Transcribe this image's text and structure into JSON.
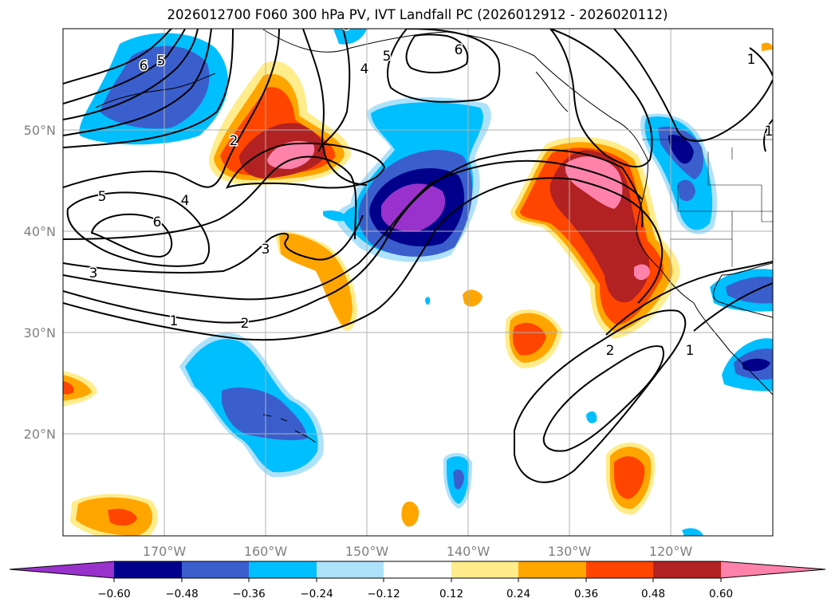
{
  "title": "2026012700 F060 300 hPa PV, IVT Landfall PC (2026012912 - 2026020112)",
  "map": {
    "lat_labels": [
      "50°N",
      "40°N",
      "30°N",
      "20°N"
    ],
    "lon_labels": [
      "170°W",
      "160°W",
      "150°W",
      "140°W",
      "130°W",
      "120°W"
    ]
  },
  "contours": {
    "labels": [
      "6",
      "5",
      "6",
      "2",
      "3",
      "4",
      "5",
      "6",
      "5",
      "4",
      "3",
      "3",
      "1",
      "2",
      "2",
      "1",
      "1",
      "1"
    ]
  },
  "colorbar": {
    "colors": [
      "#9932CC",
      "#00008B",
      "#3A5FCD",
      "#00BFFF",
      "#AEE2FA",
      "#FFFFFF",
      "#FFEC8B",
      "#FFA500",
      "#FF4500",
      "#B22222",
      "#FF82AB"
    ],
    "tick_labels": [
      "−0.60",
      "−0.48",
      "−0.36",
      "−0.24",
      "−0.12",
      "0.12",
      "0.24",
      "0.36",
      "0.48",
      "0.60"
    ]
  }
}
